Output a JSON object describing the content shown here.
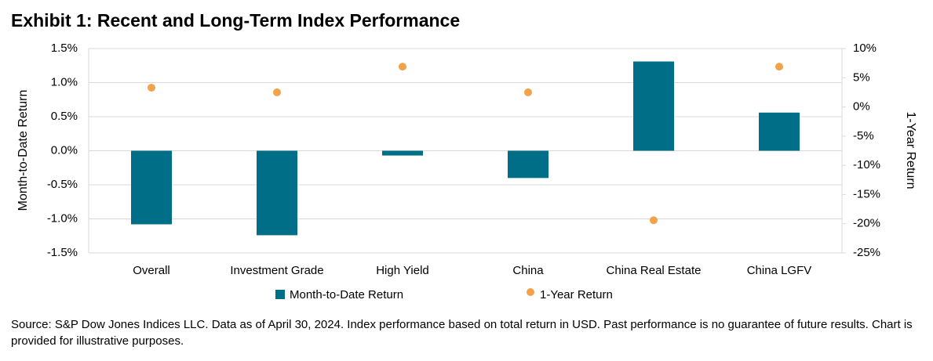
{
  "chart_data": {
    "type": "bar",
    "title": "Exhibit 1: Recent and Long-Term Index Performance",
    "categories": [
      "Overall",
      "Investment Grade",
      "High Yield",
      "China",
      "China Real Estate",
      "China LGFV"
    ],
    "series": [
      {
        "name": "Month-to-Date Return",
        "type": "bar",
        "color": "#006e87",
        "values": [
          -1.08,
          -1.24,
          -0.07,
          -0.4,
          1.31,
          0.56
        ]
      },
      {
        "name": "1-Year Return",
        "type": "scatter",
        "axis": "y2",
        "color": "#f0a34a",
        "values": [
          3.3,
          2.5,
          6.9,
          2.5,
          -19.4,
          6.9
        ]
      }
    ],
    "ylabel": "Month-to-Date Return",
    "y2label": "1-Year Return",
    "ylim": [
      -1.5,
      1.5
    ],
    "yticks": [
      {
        "value": -1.5,
        "label": "-1.5%"
      },
      {
        "value": -1.0,
        "label": "-1.0%"
      },
      {
        "value": -0.5,
        "label": "-0.5%"
      },
      {
        "value": 0,
        "label": "0.0%"
      },
      {
        "value": 0.5,
        "label": "0.5%"
      },
      {
        "value": 1.0,
        "label": "1.0%"
      },
      {
        "value": 1.5,
        "label": "1.5%"
      }
    ],
    "y2lim": [
      -25,
      10
    ],
    "y2ticks": [
      {
        "value": -25,
        "label": "-25%"
      },
      {
        "value": -20,
        "label": "-20%"
      },
      {
        "value": -15,
        "label": "-15%"
      },
      {
        "value": -10,
        "label": "-10%"
      },
      {
        "value": -5,
        "label": "-5%"
      },
      {
        "value": 0,
        "label": "0%"
      },
      {
        "value": 5,
        "label": "5%"
      },
      {
        "value": 10,
        "label": "10%"
      }
    ],
    "grid": true,
    "legend": "bottom",
    "note": "Source: S&P Dow Jones Indices LLC.  Data as of April 30, 2024.  Index performance based on total return in USD.  Past performance is no guarantee of future results.  Chart is provided for illustrative purposes."
  }
}
